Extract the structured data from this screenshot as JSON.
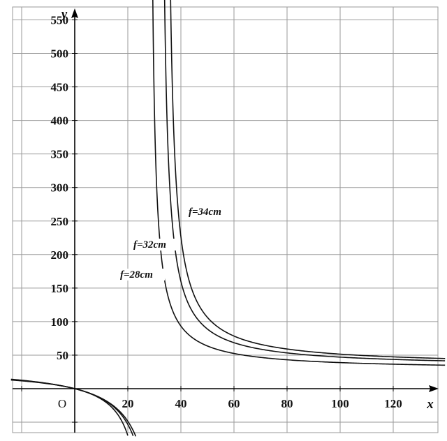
{
  "chart_data": {
    "type": "line",
    "title": "",
    "xlabel": "x",
    "ylabel": "y",
    "origin_label": "O",
    "xlim": [
      -24,
      137
    ],
    "ylim": [
      -65,
      575
    ],
    "x_ticks": [
      20,
      40,
      60,
      80,
      100,
      120
    ],
    "y_ticks": [
      50,
      100,
      150,
      200,
      250,
      300,
      350,
      400,
      450,
      500,
      550
    ],
    "grid": true,
    "colors": {
      "grid": "#9a9a9a",
      "axis": "#000000",
      "curve": "#111111"
    },
    "series": [
      {
        "name": "f=28cm",
        "f": 28,
        "formula": "y = f*x/(x - f)"
      },
      {
        "name": "f=32cm",
        "f": 32,
        "formula": "y = f*x/(x - f)"
      },
      {
        "name": "f=34cm",
        "f": 34,
        "formula": "y = f*x/(x - f)"
      }
    ]
  }
}
